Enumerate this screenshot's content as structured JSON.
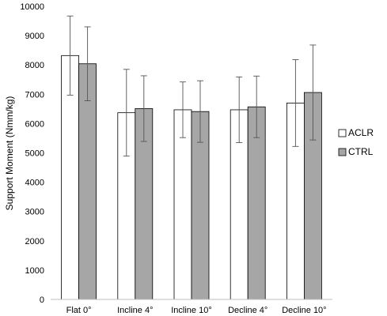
{
  "chart_data": {
    "type": "bar",
    "title": "",
    "xlabel": "",
    "ylabel": "Support Moment (Nmm/kg)",
    "ylim": [
      0,
      10000
    ],
    "yticks": [
      0,
      1000,
      2000,
      3000,
      4000,
      5000,
      6000,
      7000,
      8000,
      9000,
      10000
    ],
    "grid": false,
    "legend_position": "right",
    "categories": [
      "Flat 0°",
      "Incline 4°",
      "Incline 10°",
      "Decline 4°",
      "Decline 10°"
    ],
    "series": [
      {
        "name": "ACLR",
        "color": "#ffffff",
        "values": [
          8320,
          6370,
          6470,
          6470,
          6700
        ],
        "error": [
          1350,
          1480,
          950,
          1120,
          1480
        ]
      },
      {
        "name": "CTRL",
        "color": "#a6a6a6",
        "values": [
          8040,
          6510,
          6410,
          6570,
          7060
        ],
        "error": [
          1260,
          1120,
          1050,
          1050,
          1620
        ]
      }
    ]
  }
}
